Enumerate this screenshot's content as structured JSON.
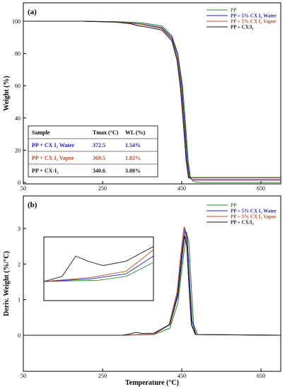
{
  "chart_data": [
    {
      "type": "line",
      "panel_label": "(a)",
      "ylabel": "Weight (%)",
      "xlabel": "",
      "xlim": [
        50,
        700
      ],
      "ylim": [
        0,
        100
      ],
      "x_ticks": [
        50,
        250,
        450,
        650
      ],
      "y_ticks": [
        0,
        20,
        40,
        60,
        80,
        100
      ],
      "grid": false,
      "legend_position": "top-right",
      "series": [
        {
          "name": "PP",
          "color": "#2e8b2e",
          "points": [
            [
              50,
              100
            ],
            [
              200,
              100
            ],
            [
              300,
              99.6
            ],
            [
              350,
              99
            ],
            [
              400,
              97
            ],
            [
              425,
              91
            ],
            [
              440,
              80
            ],
            [
              452,
              60
            ],
            [
              460,
              35
            ],
            [
              466,
              14
            ],
            [
              472,
              3
            ],
            [
              480,
              0.5
            ],
            [
              500,
              0
            ],
            [
              700,
              0
            ]
          ]
        },
        {
          "name": "PP + 5% CX I₂ Water",
          "color": "#2222cc",
          "points": [
            [
              50,
              100
            ],
            [
              200,
              100
            ],
            [
              300,
              99.4
            ],
            [
              350,
              98.2
            ],
            [
              400,
              96
            ],
            [
              425,
              90
            ],
            [
              440,
              79
            ],
            [
              450,
              60
            ],
            [
              458,
              35
            ],
            [
              464,
              14
            ],
            [
              470,
              3
            ],
            [
              478,
              1.5
            ],
            [
              700,
              1.5
            ]
          ]
        },
        {
          "name": "PP + 5% CX I₂ Vapor",
          "color": "#b5502a",
          "points": [
            [
              50,
              100
            ],
            [
              200,
              100
            ],
            [
              300,
              99.3
            ],
            [
              350,
              98
            ],
            [
              400,
              95.5
            ],
            [
              425,
              89
            ],
            [
              438,
              78
            ],
            [
              448,
              60
            ],
            [
              456,
              35
            ],
            [
              462,
              14
            ],
            [
              468,
              3
            ],
            [
              476,
              1.8
            ],
            [
              700,
              1.8
            ]
          ]
        },
        {
          "name": "PP + CX/I₂",
          "color": "#1a1a1a",
          "points": [
            [
              50,
              100
            ],
            [
              200,
              100
            ],
            [
              280,
              99.5
            ],
            [
              320,
              98.5
            ],
            [
              340,
              97.2
            ],
            [
              360,
              96.5
            ],
            [
              400,
              94.5
            ],
            [
              425,
              88
            ],
            [
              438,
              76
            ],
            [
              447,
              58
            ],
            [
              455,
              34
            ],
            [
              461,
              14
            ],
            [
              467,
              3
            ],
            [
              475,
              3
            ],
            [
              700,
              3
            ]
          ]
        }
      ],
      "table": {
        "headers": [
          "Sample",
          "Tmax (°C)",
          "WL (%)"
        ],
        "rows": [
          {
            "sample": "PP + CX I₂ Water",
            "tmax": "372.5",
            "wl": "1.54%",
            "color": "#2222cc"
          },
          {
            "sample": "PP + CX I₂ Vapor",
            "tmax": "369.5",
            "wl": "1.82%",
            "color": "#b5502a"
          },
          {
            "sample": "PP + CX-I₂",
            "tmax": "340.6",
            "wl": "3.08%",
            "color": "#1a1a1a"
          }
        ]
      }
    },
    {
      "type": "line",
      "panel_label": "(b)",
      "ylabel": "Deriv. Weight (%/°C)",
      "xlabel": "Temperature (°C)",
      "xlim": [
        50,
        700
      ],
      "ylim": [
        -0.25,
        3.5
      ],
      "x_ticks": [
        50,
        250,
        450,
        650
      ],
      "y_ticks": [
        0,
        1,
        2,
        3
      ],
      "grid": false,
      "legend_position": "top-right",
      "series": [
        {
          "name": "PP",
          "color": "#2e8b2e",
          "points": [
            [
              50,
              0
            ],
            [
              300,
              0
            ],
            [
              380,
              0.02
            ],
            [
              420,
              0.2
            ],
            [
              440,
              0.9
            ],
            [
              452,
              2.0
            ],
            [
              462,
              2.9
            ],
            [
              468,
              2.6
            ],
            [
              474,
              1.4
            ],
            [
              480,
              0.3
            ],
            [
              490,
              0.02
            ],
            [
              700,
              0
            ]
          ]
        },
        {
          "name": "PP + 5% CX I₂ Water",
          "color": "#2222cc",
          "points": [
            [
              50,
              0
            ],
            [
              300,
              0
            ],
            [
              380,
              0.03
            ],
            [
              420,
              0.3
            ],
            [
              440,
              1.2
            ],
            [
              450,
              2.3
            ],
            [
              458,
              3.0
            ],
            [
              464,
              2.7
            ],
            [
              470,
              1.5
            ],
            [
              476,
              0.4
            ],
            [
              486,
              0.02
            ],
            [
              700,
              0
            ]
          ]
        },
        {
          "name": "PP + 5% CX I₂ Vapor",
          "color": "#b5502a",
          "points": [
            [
              50,
              0
            ],
            [
              300,
              0
            ],
            [
              380,
              0.03
            ],
            [
              418,
              0.3
            ],
            [
              438,
              1.2
            ],
            [
              448,
              2.3
            ],
            [
              456,
              3.05
            ],
            [
              462,
              2.7
            ],
            [
              468,
              1.4
            ],
            [
              474,
              0.3
            ],
            [
              484,
              0.02
            ],
            [
              700,
              0
            ]
          ]
        },
        {
          "name": "PP + CX/I₂",
          "color": "#1a1a1a",
          "points": [
            [
              50,
              0
            ],
            [
              300,
              0
            ],
            [
              320,
              0.04
            ],
            [
              335,
              0.08
            ],
            [
              350,
              0.05
            ],
            [
              380,
              0.06
            ],
            [
              420,
              0.3
            ],
            [
              440,
              1.1
            ],
            [
              450,
              2.1
            ],
            [
              457,
              2.8
            ],
            [
              463,
              2.5
            ],
            [
              469,
              1.3
            ],
            [
              475,
              0.3
            ],
            [
              485,
              0.02
            ],
            [
              700,
              0
            ]
          ]
        }
      ],
      "inset": {
        "x": [
          300,
          420
        ],
        "series": [
          {
            "color": "#2e8b2e",
            "points": [
              [
                300,
                0.3
              ],
              [
                360,
                0.32
              ],
              [
                390,
                0.38
              ],
              [
                420,
                0.6
              ]
            ]
          },
          {
            "color": "#2222cc",
            "points": [
              [
                300,
                0.3
              ],
              [
                350,
                0.34
              ],
              [
                390,
                0.42
              ],
              [
                420,
                0.7
              ]
            ]
          },
          {
            "color": "#b5502a",
            "points": [
              [
                300,
                0.3
              ],
              [
                350,
                0.36
              ],
              [
                390,
                0.46
              ],
              [
                420,
                0.8
              ]
            ]
          },
          {
            "color": "#1a1a1a",
            "points": [
              [
                300,
                0.3
              ],
              [
                320,
                0.38
              ],
              [
                335,
                0.7
              ],
              [
                348,
                0.62
              ],
              [
                365,
                0.55
              ],
              [
                390,
                0.62
              ],
              [
                420,
                0.85
              ]
            ]
          }
        ]
      }
    }
  ]
}
